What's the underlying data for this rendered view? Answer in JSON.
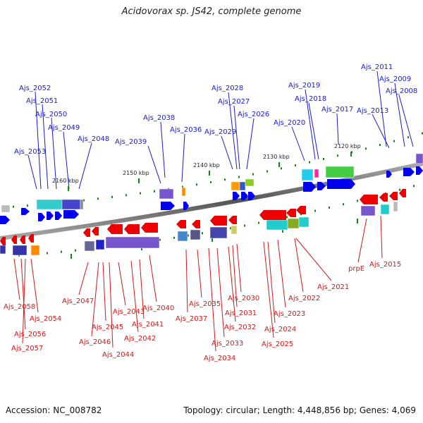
{
  "title": "Acidovorax sp. JS42, complete genome",
  "footer": {
    "accession": "Accession: NC_008782",
    "topology": "Topology: circular; Length: 4,448,856 bp; Genes: 4,069"
  },
  "colors": {
    "forward_label": "#1a1acc",
    "reverse_label": "#cc1a1a",
    "forward_arrow": "#0000ee",
    "reverse_arrow": "#ee0000",
    "backbone": "#7a7a7a",
    "tick": "#118811"
  },
  "kbp_labels": [
    "2160 kbp",
    "2150 kbp",
    "2140 kbp",
    "2130 kbp",
    "2120 kbp"
  ],
  "top_genes": [
    "Ajs_2052",
    "Ajs_2051",
    "Ajs_2050",
    "Ajs_2049",
    "Ajs_2053",
    "Ajs_2048",
    "Ajs_2039",
    "Ajs_2038",
    "Ajs_2036",
    "Ajs_2028",
    "Ajs_2027",
    "Ajs_2029",
    "Ajs_2026",
    "Ajs_2020",
    "Ajs_2019",
    "Ajs_2018",
    "Ajs_2017",
    "Ajs_2013",
    "Ajs_2011",
    "Ajs_2009",
    "Ajs_2008"
  ],
  "bottom_genes": [
    "Ajs_2058",
    "Ajs_2056",
    "Ajs_2057",
    "Ajs_2054",
    "Ajs_2047",
    "Ajs_2045",
    "Ajs_2046",
    "Ajs_2044",
    "Ajs_2043",
    "Ajs_2042",
    "Ajs_2041",
    "Ajs_2040",
    "Ajs_2035",
    "Ajs_2037",
    "Ajs_2034",
    "Ajs_2033",
    "Ajs_2032",
    "Ajs_2031",
    "Ajs_2030",
    "Ajs_2024",
    "Ajs_2025",
    "Ajs_2023",
    "Ajs_2022",
    "Ajs_2021",
    "prpE",
    "Ajs_2015"
  ]
}
